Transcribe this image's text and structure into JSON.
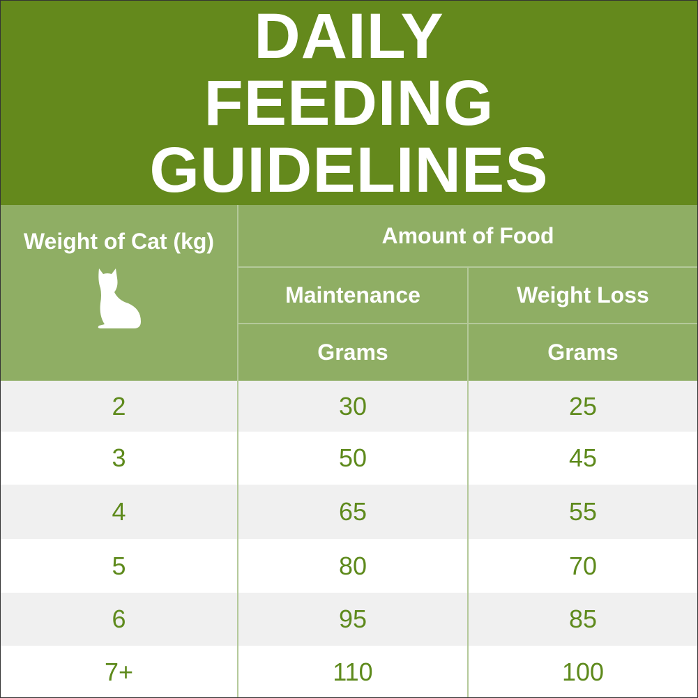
{
  "header": {
    "title": "DAILY FEEDING GUIDELINES"
  },
  "table": {
    "weight_header": "Weight of Cat (kg)",
    "amount_header": "Amount of Food",
    "columns": [
      "Maintenance",
      "Weight Loss"
    ],
    "units": [
      "Grams",
      "Grams"
    ],
    "rows": [
      [
        "2",
        "30",
        "25"
      ],
      [
        "3",
        "50",
        "45"
      ],
      [
        "4",
        "65",
        "55"
      ],
      [
        "5",
        "80",
        "70"
      ],
      [
        "6",
        "95",
        "85"
      ],
      [
        "7+",
        "110",
        "100"
      ]
    ]
  }
}
